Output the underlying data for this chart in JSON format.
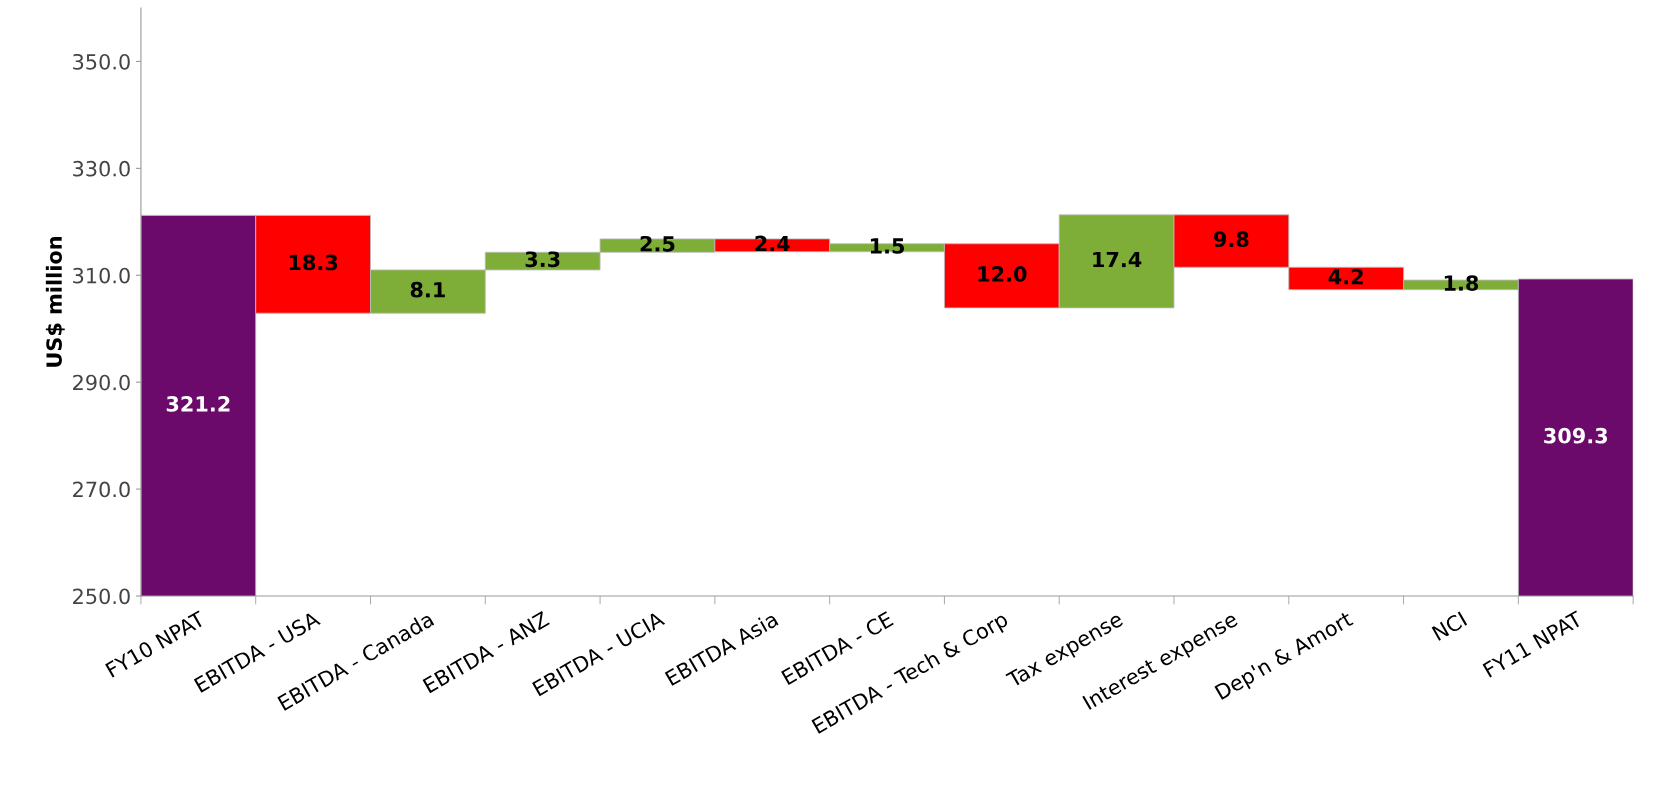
{
  "chart_data": {
    "type": "bar",
    "ylabel": "US$ million",
    "categories": [
      "FY10 NPAT",
      "EBITDA - USA",
      "EBITDA - Canada",
      "EBITDA - ANZ",
      "EBITDA - UCIA",
      "EBITDA Asia",
      "EBITDA - CE",
      "EBITDA - Tech & Corp",
      "Tax expense",
      "Interest expense",
      "Dep'n & Amort",
      "NCI",
      "FY11 NPAT"
    ],
    "values": [
      321.2,
      -18.3,
      8.1,
      3.3,
      2.5,
      -2.4,
      1.5,
      -12.0,
      17.4,
      -9.8,
      -4.2,
      1.8,
      309.3
    ],
    "base": [
      null,
      321.2,
      302.9,
      311.0,
      314.3,
      316.8,
      314.4,
      315.9,
      303.9,
      321.3,
      311.5,
      307.3,
      null
    ],
    "value_labels": [
      "321.2",
      "18.3",
      "8.1",
      "3.3",
      "2.5",
      "2.4",
      "1.5",
      "12.0",
      "17.4",
      "9.8",
      "4.2",
      "1.8",
      "309.3"
    ],
    "colors": [
      "#6b0a6b",
      "#ff0000",
      "#7fae38",
      "#7fae38",
      "#7fae38",
      "#ff0000",
      "#7fae38",
      "#ff0000",
      "#7fae38",
      "#ff0000",
      "#ff0000",
      "#7fae38",
      "#6b0a6b"
    ],
    "ylim": [
      250,
      360
    ],
    "yticks": [
      {
        "value": 250,
        "label": "250.0"
      },
      {
        "value": 270,
        "label": "270.0"
      },
      {
        "value": 290,
        "label": "290.0"
      },
      {
        "value": 310,
        "label": "310.0"
      },
      {
        "value": 330,
        "label": "330.0"
      },
      {
        "value": 350,
        "label": "350.0"
      }
    ],
    "grid": false,
    "legend": false
  }
}
